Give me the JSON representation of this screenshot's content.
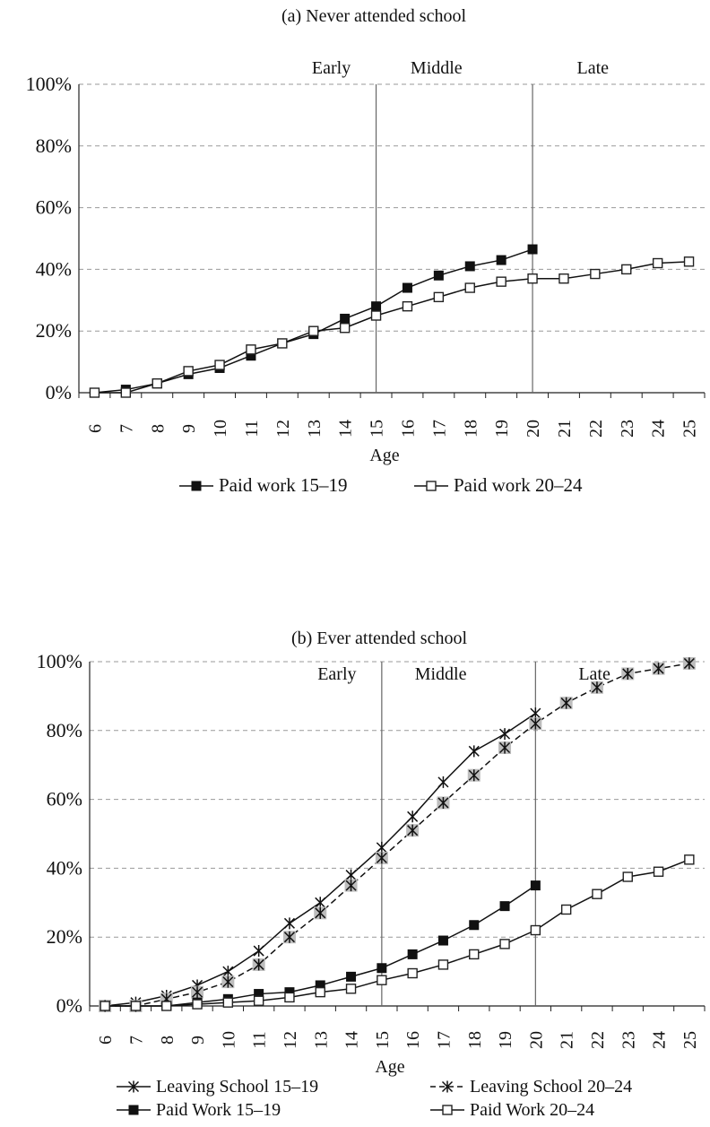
{
  "chart_data": [
    {
      "type": "line",
      "title": "(a)  Never attended school",
      "xlabel": "Age",
      "ylabel": "",
      "x": [
        6,
        7,
        8,
        9,
        10,
        11,
        12,
        13,
        14,
        15,
        16,
        17,
        18,
        19,
        20,
        21,
        22,
        23,
        24,
        25
      ],
      "x_tick_labels": [
        "6",
        "7",
        "8",
        "9",
        "10",
        "11",
        "12",
        "13",
        "14",
        "15",
        "16",
        "17",
        "18",
        "19",
        "20",
        "21",
        "22",
        "23",
        "24",
        "25"
      ],
      "ylim": [
        0,
        100
      ],
      "y_tick_labels": [
        "0%",
        "20%",
        "40%",
        "60%",
        "80%",
        "100%"
      ],
      "y_ticks": [
        0,
        20,
        40,
        60,
        80,
        100
      ],
      "grid": "horizontal dashed",
      "legend_placement": "bottom",
      "phase_lines": [
        {
          "x": 15,
          "label": "Early"
        },
        {
          "x": 20,
          "label": "Middle"
        },
        {
          "x": 25,
          "label": "Late"
        }
      ],
      "series": [
        {
          "name": "Paid work 15–19",
          "marker": "filled-square",
          "values": [
            0,
            1,
            3,
            6,
            8,
            12,
            16,
            19,
            24,
            28,
            34,
            38,
            41,
            43,
            46.5,
            null,
            null,
            null,
            null,
            null
          ]
        },
        {
          "name": "Paid work 20–24",
          "marker": "open-square",
          "values": [
            0,
            0,
            3,
            7,
            9,
            14,
            16,
            20,
            21,
            25,
            28,
            31,
            34,
            36,
            37,
            37,
            38.5,
            40,
            42,
            42.5
          ]
        }
      ]
    },
    {
      "type": "line",
      "title": "(b) Ever attended school",
      "xlabel": "Age",
      "ylabel": "",
      "x": [
        6,
        7,
        8,
        9,
        10,
        11,
        12,
        13,
        14,
        15,
        16,
        17,
        18,
        19,
        20,
        21,
        22,
        23,
        24,
        25
      ],
      "x_tick_labels": [
        "6",
        "7",
        "8",
        "9",
        "10",
        "11",
        "12",
        "13",
        "14",
        "15",
        "16",
        "17",
        "18",
        "19",
        "20",
        "21",
        "22",
        "23",
        "24",
        "25"
      ],
      "ylim": [
        0,
        100
      ],
      "y_tick_labels": [
        "0%",
        "20%",
        "40%",
        "60%",
        "80%",
        "100%"
      ],
      "y_ticks": [
        0,
        20,
        40,
        60,
        80,
        100
      ],
      "grid": "horizontal dashed",
      "legend_placement": "bottom",
      "phase_lines": [
        {
          "x": 15,
          "label": "Early"
        },
        {
          "x": 20,
          "label": "Middle"
        },
        {
          "x": 25,
          "label": "Late"
        }
      ],
      "series": [
        {
          "name": "Leaving School 15–19",
          "marker": "star",
          "values": [
            0,
            1,
            3,
            6,
            10,
            16,
            24,
            30,
            38,
            46,
            55,
            65,
            74,
            79,
            85,
            null,
            null,
            null,
            null,
            null
          ]
        },
        {
          "name": "Leaving School 20–24",
          "marker": "star-shaded",
          "values": [
            0,
            0,
            2,
            4,
            7,
            12,
            20,
            27,
            35,
            43,
            51,
            59,
            67,
            75,
            82,
            88,
            92.5,
            96.5,
            98,
            99.5
          ]
        },
        {
          "name": "Paid Work 15–19",
          "marker": "filled-square",
          "values": [
            0,
            0,
            0,
            1,
            2,
            3.5,
            4,
            6,
            8.5,
            11,
            15,
            19,
            23.5,
            29,
            35,
            null,
            null,
            null,
            null,
            null
          ]
        },
        {
          "name": "Paid Work 20–24",
          "marker": "open-square",
          "values": [
            0,
            0,
            0,
            0.5,
            1,
            1.5,
            2.5,
            4,
            5,
            7.5,
            9.5,
            12,
            15,
            18,
            22,
            28,
            32.5,
            37.5,
            39,
            42.5
          ]
        }
      ]
    }
  ]
}
